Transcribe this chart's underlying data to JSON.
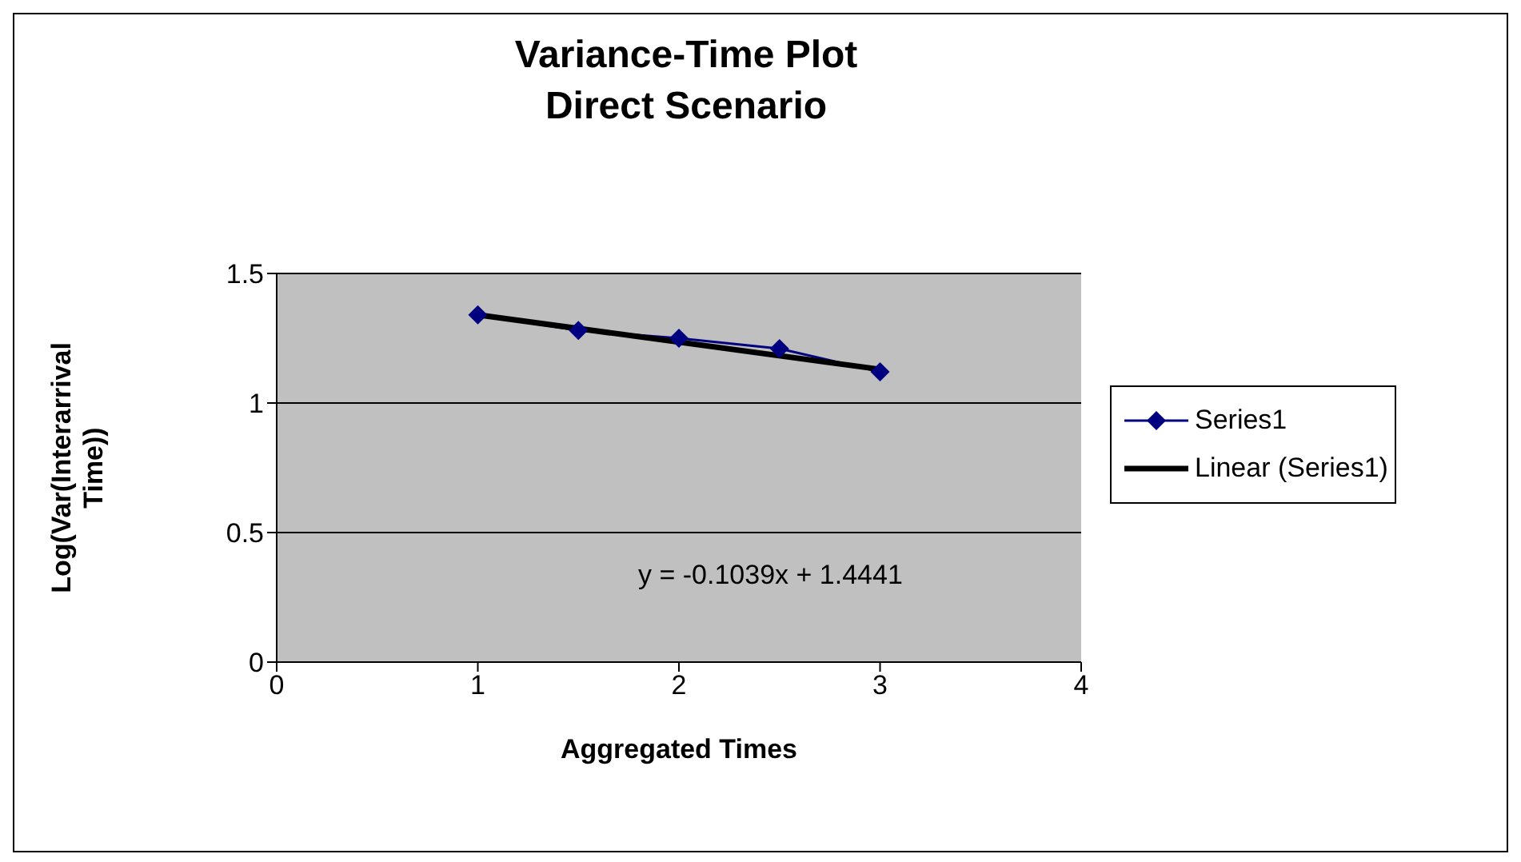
{
  "chart_data": {
    "type": "line",
    "title": "Variance-Time Plot",
    "subtitle": "Direct Scenario",
    "xlabel": "Aggregated Times",
    "ylabel": "Log(Var(Interarrival Time))",
    "series": [
      {
        "name": "Series1",
        "color": "#000080",
        "x": [
          1,
          1.5,
          2,
          2.5,
          3
        ],
        "values": [
          1.34,
          1.28,
          1.25,
          1.21,
          1.12
        ],
        "marker": "diamond"
      },
      {
        "name": "Linear (Series1)",
        "color": "#000000",
        "x": [
          1,
          3
        ],
        "values": [
          1.34,
          1.13
        ],
        "marker": "none"
      }
    ],
    "xlim": [
      0,
      4
    ],
    "xticks": [
      0,
      1,
      2,
      3,
      4
    ],
    "ylim": [
      0,
      1.5
    ],
    "yticks": [
      0,
      0.5,
      1,
      1.5
    ],
    "grid": "y",
    "legend": "right",
    "annotations": [
      "y = -0.1039x + 1.4441"
    ]
  }
}
